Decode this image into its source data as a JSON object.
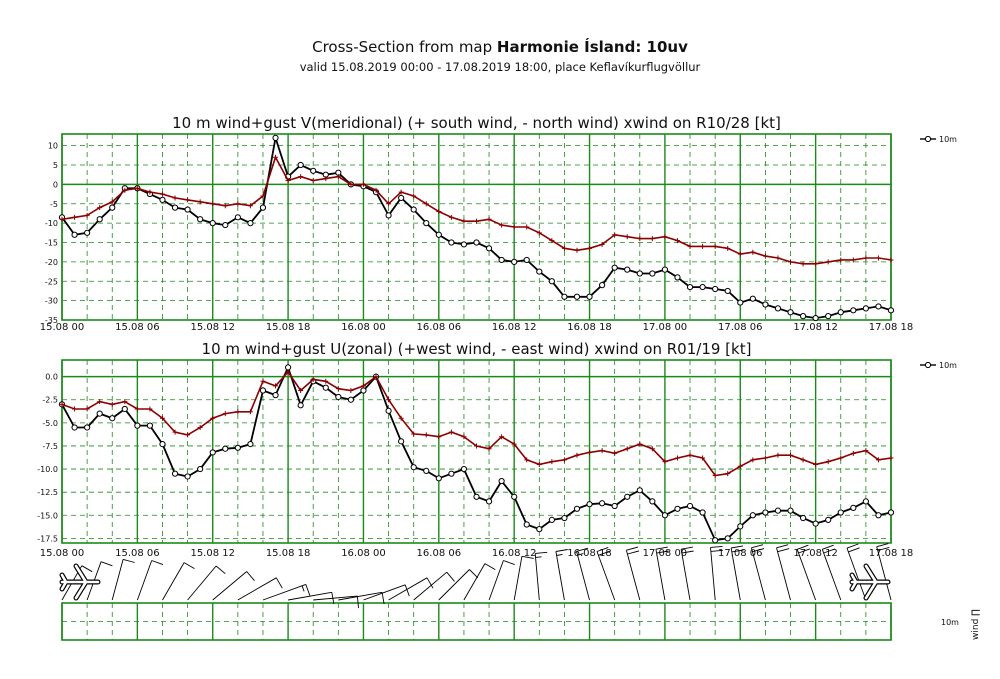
{
  "header": {
    "title_prefix": "Cross-Section from map ",
    "title_bold": "Harmonie Ísland: 10uv",
    "subtitle": "valid 15.08.2019 00:00 - 17.08.2019 18:00, place Keflavíkurflugvöllur"
  },
  "colors": {
    "grid": "#1a8a1a",
    "gust": "#8b0000",
    "wind": "#000000"
  },
  "chart_data": [
    {
      "type": "line",
      "title": "10 m wind+gust V(meridional) (+ south wind, - north wind) xwind on R10/28 [kt]",
      "legend": {
        "label": "10m",
        "placement": "top-right"
      },
      "x_tick_labels": [
        "15.08 00",
        "15.08 06",
        "15.08 12",
        "15.08 18",
        "16.08 00",
        "16.08 06",
        "16.08 12",
        "16.08 18",
        "17.08 00",
        "17.08 06",
        "17.08 12",
        "17.08 18"
      ],
      "y_ticks": [
        10,
        5,
        0,
        -5,
        -10,
        -15,
        -20,
        -25,
        -30,
        -35
      ],
      "y_tick_labels": [
        "10",
        "5",
        "0",
        "-5",
        "-10",
        "-15",
        "-20",
        "-25",
        "-30",
        "-35"
      ],
      "ylim": [
        -35,
        13
      ],
      "x_hours_range": [
        0,
        66
      ],
      "grid": true,
      "series": [
        {
          "name": "10m",
          "role": "wind",
          "x": [
            0,
            1,
            2,
            3,
            4,
            5,
            6,
            7,
            8,
            9,
            10,
            11,
            12,
            13,
            14,
            15,
            16,
            17,
            18,
            19,
            20,
            21,
            22,
            23,
            24,
            25,
            26,
            27,
            28,
            29,
            30,
            31,
            32,
            33,
            34,
            35,
            36,
            37,
            38,
            39,
            40,
            41,
            42,
            43,
            44,
            45,
            46,
            47,
            48,
            49,
            50,
            51,
            52,
            53,
            54,
            55,
            56,
            57,
            58,
            59,
            60,
            61,
            62,
            63,
            64,
            65,
            66
          ],
          "values": [
            -8.5,
            -13,
            -12.5,
            -9,
            -6,
            -1,
            -1,
            -2.5,
            -4,
            -6,
            -6.5,
            -9,
            -10,
            -10.5,
            -8.5,
            -10,
            -6,
            12,
            2,
            5,
            3.5,
            2.5,
            3,
            0,
            -0.5,
            -2,
            -8,
            -3.5,
            -6.5,
            -10,
            -13,
            -15,
            -15.5,
            -15,
            -16.5,
            -19.5,
            -20,
            -19.5,
            -22.5,
            -25,
            -29,
            -29,
            -29,
            -26,
            -21.5,
            -22,
            -23,
            -23,
            -22,
            -24,
            -26.5,
            -26.5,
            -27,
            -27.5,
            -30.5,
            -29.5,
            -31,
            -32,
            -33,
            -34,
            -34.5,
            -34,
            -33,
            -32.5,
            -32,
            -31.5,
            -32.5
          ]
        },
        {
          "name": "",
          "role": "gust",
          "x": [
            0,
            1,
            2,
            3,
            4,
            5,
            6,
            7,
            8,
            9,
            10,
            11,
            12,
            13,
            14,
            15,
            16,
            17,
            18,
            19,
            20,
            21,
            22,
            23,
            24,
            25,
            26,
            27,
            28,
            29,
            30,
            31,
            32,
            33,
            34,
            35,
            36,
            37,
            38,
            39,
            40,
            41,
            42,
            43,
            44,
            45,
            46,
            47,
            48,
            49,
            50,
            51,
            52,
            53,
            54,
            55,
            56,
            57,
            58,
            59,
            60,
            61,
            62,
            63,
            64,
            65,
            66
          ],
          "values": [
            -9,
            -8.5,
            -8,
            -6,
            -4.5,
            -1.5,
            -1,
            -2,
            -2.5,
            -3.5,
            -4,
            -4.5,
            -5,
            -5.5,
            -5,
            -5.5,
            -3,
            7,
            1,
            2,
            1,
            1.5,
            2,
            0,
            0,
            -1.5,
            -5,
            -2,
            -3,
            -5,
            -7,
            -8.5,
            -9.5,
            -9.5,
            -9,
            -10.5,
            -11,
            -11,
            -12.5,
            -14.5,
            -16.5,
            -17,
            -16.5,
            -15.5,
            -13,
            -13.5,
            -14,
            -14,
            -13.5,
            -14.5,
            -16,
            -16,
            -16,
            -16.5,
            -18,
            -17.5,
            -18.5,
            -19,
            -20,
            -20.5,
            -20.5,
            -20,
            -19.5,
            -19.5,
            -19,
            -19,
            -19.5
          ]
        }
      ]
    },
    {
      "type": "line",
      "title": "10 m wind+gust U(zonal) (+west wind, - east wind) xwind on R01/19 [kt]",
      "legend": {
        "label": "10m",
        "placement": "top-right"
      },
      "x_tick_labels": [
        "15.08 00",
        "15.08 06",
        "15.08 12",
        "15.08 18",
        "16.08 00",
        "16.08 06",
        "16.08 12",
        "16.08 18",
        "17.08 00",
        "17.08 06",
        "17.08 12",
        "17.08 18"
      ],
      "y_ticks": [
        0,
        -2.5,
        -5,
        -7.5,
        -10,
        -12.5,
        -15,
        -17.5
      ],
      "y_tick_labels": [
        "0.0",
        "-2.5",
        "-5.0",
        "-7.5",
        "-10.0",
        "-12.5",
        "-15.0",
        "-17.5"
      ],
      "ylim": [
        -18,
        1.8
      ],
      "x_hours_range": [
        0,
        66
      ],
      "grid": true,
      "series": [
        {
          "name": "10m",
          "role": "wind",
          "x": [
            0,
            1,
            2,
            3,
            4,
            5,
            6,
            7,
            8,
            9,
            10,
            11,
            12,
            13,
            14,
            15,
            16,
            17,
            18,
            19,
            20,
            21,
            22,
            23,
            24,
            25,
            26,
            27,
            28,
            29,
            30,
            31,
            32,
            33,
            34,
            35,
            36,
            37,
            38,
            39,
            40,
            41,
            42,
            43,
            44,
            45,
            46,
            47,
            48,
            49,
            50,
            51,
            52,
            53,
            54,
            55,
            56,
            57,
            58,
            59,
            60,
            61,
            62,
            63,
            64,
            65,
            66
          ],
          "values": [
            -3,
            -5.5,
            -5.5,
            -4,
            -4.5,
            -3.5,
            -5.3,
            -5.3,
            -7.3,
            -10.5,
            -10.8,
            -10,
            -8.2,
            -7.8,
            -7.7,
            -7.3,
            -1.5,
            -2,
            1,
            -3.1,
            -0.5,
            -1.2,
            -2.2,
            -2.5,
            -1.5,
            0,
            -3.7,
            -7,
            -9.8,
            -10.2,
            -11,
            -10.5,
            -10,
            -13,
            -13.5,
            -11.3,
            -13,
            -16,
            -16.5,
            -15.5,
            -15.3,
            -14.3,
            -13.8,
            -13.7,
            -14,
            -13,
            -12.3,
            -13.5,
            -15,
            -14.3,
            -14,
            -14.7,
            -17.7,
            -17.5,
            -16.2,
            -15,
            -14.7,
            -14.5,
            -14.5,
            -15.3,
            -15.9,
            -15.5,
            -14.7,
            -14.2,
            -13.5,
            -15,
            -14.7
          ]
        },
        {
          "name": "",
          "role": "gust",
          "x": [
            0,
            1,
            2,
            3,
            4,
            5,
            6,
            7,
            8,
            9,
            10,
            11,
            12,
            13,
            14,
            15,
            16,
            17,
            18,
            19,
            20,
            21,
            22,
            23,
            24,
            25,
            26,
            27,
            28,
            29,
            30,
            31,
            32,
            33,
            34,
            35,
            36,
            37,
            38,
            39,
            40,
            41,
            42,
            43,
            44,
            45,
            46,
            47,
            48,
            49,
            50,
            51,
            52,
            53,
            54,
            55,
            56,
            57,
            58,
            59,
            60,
            61,
            62,
            63,
            64,
            65,
            66
          ],
          "values": [
            -3,
            -3.5,
            -3.5,
            -2.7,
            -3,
            -2.7,
            -3.5,
            -3.5,
            -4.5,
            -6,
            -6.3,
            -5.5,
            -4.5,
            -4,
            -3.8,
            -3.8,
            -0.5,
            -1,
            0.5,
            -1.5,
            -0.3,
            -0.5,
            -1.3,
            -1.5,
            -1,
            0,
            -2.5,
            -4.5,
            -6.2,
            -6.3,
            -6.5,
            -6,
            -6.5,
            -7.5,
            -7.8,
            -6.5,
            -7.3,
            -9,
            -9.5,
            -9.2,
            -9,
            -8.5,
            -8.2,
            -8,
            -8.3,
            -7.8,
            -7.3,
            -7.8,
            -9.2,
            -8.8,
            -8.5,
            -8.8,
            -10.7,
            -10.5,
            -9.7,
            -9,
            -8.8,
            -8.5,
            -8.5,
            -9,
            -9.5,
            -9.2,
            -8.8,
            -8.3,
            -8,
            -9,
            -8.8
          ]
        }
      ]
    },
    {
      "type": "barbs",
      "title": "",
      "side_label": {
        "unit": "10m",
        "caption": "wind ∏"
      },
      "x_hours_range": [
        0,
        66
      ],
      "x_step_hours": 2,
      "directions_from_deg": [
        30,
        20,
        15,
        20,
        30,
        40,
        50,
        60,
        70,
        80,
        85,
        80,
        70,
        60,
        50,
        45,
        30,
        20,
        10,
        355,
        350,
        345,
        340,
        345,
        350,
        350,
        355,
        350,
        345,
        345,
        340,
        340,
        340,
        345,
        345,
        340,
        340,
        345,
        345,
        340,
        340,
        345
      ],
      "speeds_kt": [
        8,
        9,
        10,
        10,
        11,
        12,
        12,
        12,
        13,
        12,
        12,
        12,
        12,
        12,
        11,
        11,
        10,
        10,
        12,
        14,
        16,
        17,
        18,
        18,
        18,
        18,
        19,
        19,
        20,
        20,
        20,
        20,
        21,
        21,
        22,
        22,
        22,
        23,
        23,
        24,
        24,
        24
      ]
    }
  ]
}
